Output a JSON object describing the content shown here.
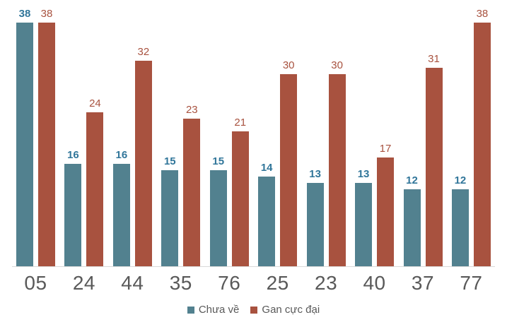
{
  "chart_data": {
    "type": "bar",
    "title": "",
    "xlabel": "",
    "ylabel": "",
    "categories": [
      "05",
      "24",
      "44",
      "35",
      "76",
      "25",
      "23",
      "40",
      "37",
      "77"
    ],
    "series": [
      {
        "name": "Chưa về",
        "values": [
          38,
          16,
          16,
          15,
          15,
          14,
          13,
          13,
          12,
          12
        ],
        "color": "#52818F",
        "label_color": "#31769A",
        "label_bold": true
      },
      {
        "name": "Gan cực đại",
        "values": [
          38,
          24,
          32,
          23,
          21,
          30,
          30,
          17,
          31,
          38
        ],
        "color": "#A8523F",
        "label_color": "#A8523F",
        "label_bold": false
      }
    ],
    "ylim": [
      0,
      38
    ],
    "grid": false,
    "data_labels": true,
    "legend_position": "bottom"
  },
  "legend": {
    "items": [
      {
        "label": "Chưa về",
        "color": "#52818F"
      },
      {
        "label": "Gan cực đại",
        "color": "#A8523F"
      }
    ]
  },
  "axis": {
    "category_label_color": "#595959",
    "axis_line_color": "#D9D9D9",
    "legend_text_color": "#595959"
  }
}
